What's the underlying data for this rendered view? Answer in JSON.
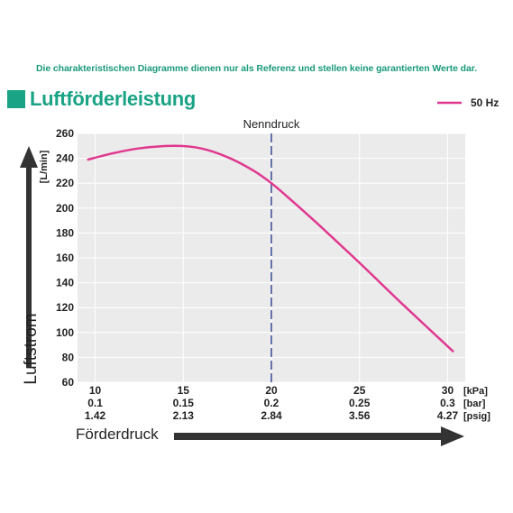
{
  "disclaimer": "Die charakteristischen Diagramme dienen nur als Referenz und stellen keine garantierten Werte dar.",
  "title": "Luftförderleistung",
  "colors": {
    "accent": "#1aa385",
    "curve": "#e0378f",
    "rated_line": "#2d3f8f",
    "plot_bg": "#ebebeb"
  },
  "chart_data": {
    "type": "line",
    "title": "Luftförderleistung",
    "ylabel": "Luftstrom",
    "yunit": "[L/min]",
    "xlabel": "Förderdruck",
    "ylim": [
      60,
      260
    ],
    "yticks": [
      60,
      80,
      100,
      120,
      140,
      160,
      180,
      200,
      220,
      240,
      260
    ],
    "xlim": [
      9,
      31
    ],
    "grid": true,
    "legend_position": "top-right",
    "x_ticks": [
      {
        "kpa": "10",
        "bar": "0.1",
        "psig": "1.42"
      },
      {
        "kpa": "15",
        "bar": "0.15",
        "psig": "2.13"
      },
      {
        "kpa": "20",
        "bar": "0.2",
        "psig": "2.84"
      },
      {
        "kpa": "25",
        "bar": "0.25",
        "psig": "3.56"
      },
      {
        "kpa": "30",
        "bar": "0.3",
        "psig": "4.27"
      }
    ],
    "x_units": [
      "[kPa]",
      "[bar]",
      "[psig]"
    ],
    "rated_pressure": {
      "label": "Nenndruck",
      "x": 20
    },
    "series": [
      {
        "name": "50 Hz",
        "x": [
          9.6,
          11,
          12.5,
          14.5,
          16,
          17.5,
          19,
          20,
          21,
          22.5,
          25,
          27.5,
          30.3
        ],
        "y": [
          239,
          244,
          248,
          250,
          248,
          241,
          230,
          220,
          208,
          189,
          156,
          122,
          85
        ]
      }
    ]
  }
}
